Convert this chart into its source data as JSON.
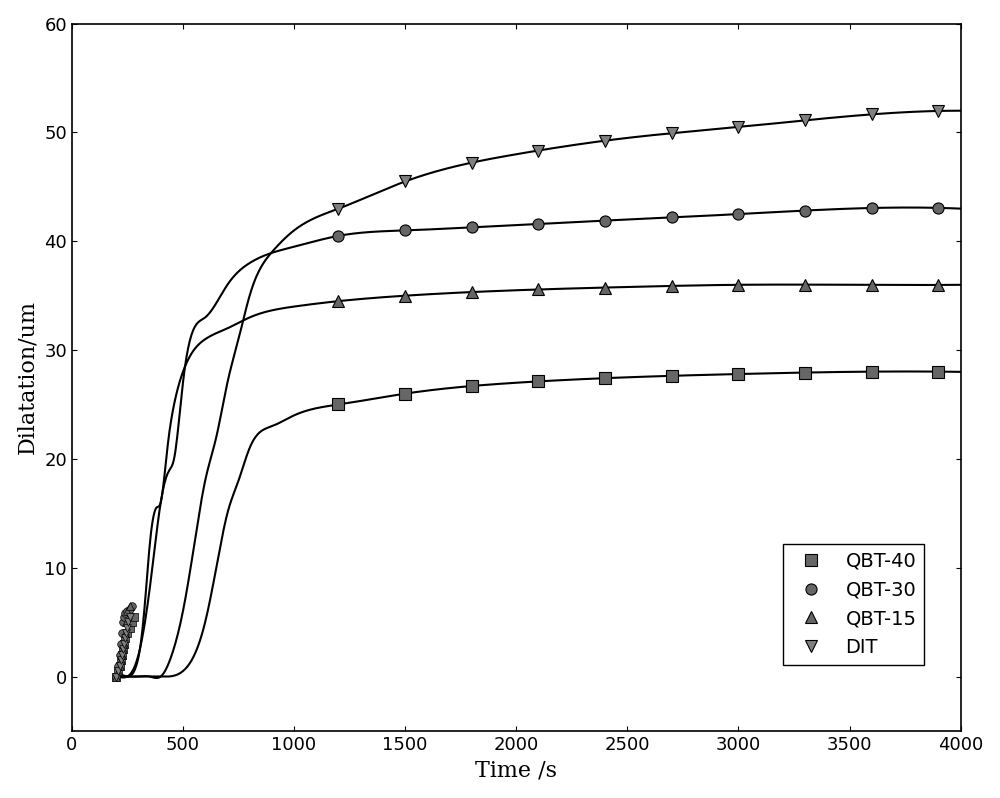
{
  "title": "",
  "xlabel": "Time /s",
  "ylabel": "Dilatation/um",
  "xlim": [
    0,
    4000
  ],
  "ylim": [
    -5,
    60
  ],
  "xticks": [
    0,
    500,
    1000,
    1500,
    2000,
    2500,
    3000,
    3500,
    4000
  ],
  "yticks": [
    0,
    10,
    20,
    30,
    40,
    50,
    60
  ],
  "background_color": "#ffffff",
  "line_color": "#000000",
  "marker_color": "#808080",
  "series": {
    "QBT-40": {
      "label": "QBT-40",
      "marker": "s",
      "color": "#666666",
      "x_scatter": [
        200,
        210,
        215,
        220,
        225,
        230,
        235,
        240,
        250,
        260,
        270,
        280
      ],
      "y_scatter": [
        0,
        0.5,
        1,
        1.5,
        2,
        2.5,
        3,
        3.5,
        4,
        4.5,
        5,
        5.5
      ],
      "x_curve": [
        200,
        250,
        300,
        400,
        500,
        600,
        650,
        700,
        750,
        800,
        900,
        1000,
        1200,
        1500,
        2000,
        2500,
        3000,
        3500,
        4000
      ],
      "y_curve": [
        0,
        0,
        0,
        0,
        0.5,
        5,
        10,
        15,
        18,
        21,
        23,
        24,
        25,
        26,
        27,
        27.5,
        27.8,
        28,
        28
      ]
    },
    "QBT-30": {
      "label": "QBT-30",
      "marker": "o",
      "color": "#666666",
      "x_scatter": [
        200,
        210,
        215,
        220,
        225,
        230,
        235,
        240,
        250,
        260,
        270
      ],
      "y_scatter": [
        0,
        1,
        2,
        3,
        4,
        5,
        5.5,
        5.8,
        6,
        6.2,
        6.5
      ],
      "x_curve": [
        200,
        250,
        300,
        350,
        380,
        400,
        420,
        440,
        460,
        500,
        600,
        700,
        800,
        1000,
        1200,
        1500,
        2000,
        2500,
        3000,
        3500,
        4000
      ],
      "y_curve": [
        0,
        0,
        2,
        8,
        13,
        16,
        18,
        19,
        20,
        27,
        33,
        36,
        38,
        39.5,
        40.5,
        41,
        41.5,
        42,
        42.5,
        43,
        43
      ]
    },
    "QBT-15": {
      "label": "QBT-15",
      "marker": "^",
      "color": "#666666",
      "x_scatter": [
        200,
        210,
        215,
        220,
        225,
        230,
        235,
        240,
        245,
        250,
        260
      ],
      "y_scatter": [
        0,
        0.5,
        1,
        1.5,
        2,
        2.5,
        3,
        4,
        5,
        6,
        6.5
      ],
      "x_curve": [
        200,
        250,
        290,
        310,
        330,
        350,
        380,
        400,
        430,
        460,
        500,
        600,
        700,
        800,
        1000,
        1200,
        1500,
        2000,
        2500,
        3000,
        3500,
        4000
      ],
      "y_curve": [
        0,
        0,
        1,
        3,
        7,
        12,
        15.5,
        16,
        21,
        25,
        28,
        31,
        32,
        33,
        34,
        34.5,
        35,
        35.5,
        35.8,
        36,
        36,
        36
      ]
    },
    "DIT": {
      "label": "DIT",
      "marker": "v",
      "color": "#808080",
      "x_scatter": [
        200,
        210,
        215,
        220,
        225,
        230,
        235,
        240,
        245,
        250,
        255,
        260
      ],
      "y_scatter": [
        0,
        0.5,
        1,
        1.5,
        2,
        2.5,
        3,
        3.5,
        4,
        4.5,
        5,
        5.5
      ],
      "x_curve": [
        200,
        250,
        300,
        350,
        400,
        450,
        500,
        550,
        600,
        650,
        700,
        750,
        800,
        900,
        1000,
        1200,
        1500,
        2000,
        2500,
        3000,
        3500,
        4000
      ],
      "y_curve": [
        0,
        0,
        0,
        0,
        0,
        2,
        6,
        12,
        18,
        22,
        27,
        31,
        35,
        39,
        41,
        43,
        45.5,
        48,
        49.5,
        50.5,
        51.5,
        52
      ]
    }
  }
}
